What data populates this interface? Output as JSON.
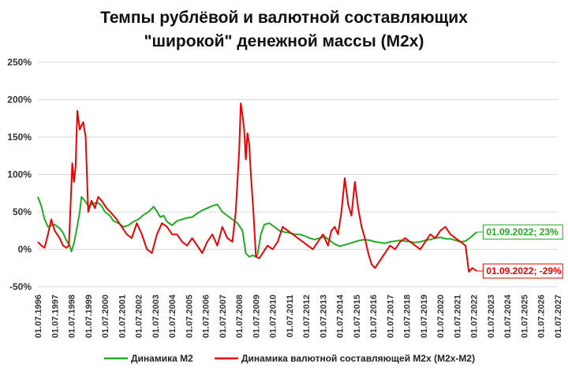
{
  "chart_data": {
    "type": "line",
    "title_lines": [
      "Темпы рублёвой и валютной составляющих",
      "\"широкой\" денежной массы (M2x)"
    ],
    "xlabel": "",
    "ylabel": "",
    "ylim": [
      -50,
      250
    ],
    "y_ticks": [
      -50,
      0,
      50,
      100,
      150,
      200,
      250
    ],
    "y_tick_labels": [
      "-50%",
      "0%",
      "50%",
      "100%",
      "150%",
      "200%",
      "250%"
    ],
    "x_range": [
      1996.5,
      2027.5
    ],
    "x_tick_labels": [
      "01.07.1996",
      "01.07.1997",
      "01.07.1998",
      "01.07.1999",
      "01.07.2000",
      "01.07.2001",
      "01.07.2002",
      "01.07.2003",
      "01.07.2004",
      "01.07.2005",
      "01.07.2006",
      "01.07.2007",
      "01.07.2008",
      "01.07.2009",
      "01.07.2010",
      "01.07.2011",
      "01.07.2012",
      "01.07.2013",
      "01.07.2014",
      "01.07.2015",
      "01.07.2016",
      "01.07.2017",
      "01.07.2018",
      "01.07.2019",
      "01.07.2020",
      "01.07.2021",
      "01.07.2022",
      "01.07.2023",
      "01.07.2024",
      "01.07.2025",
      "01.07.2026",
      "01.07.2027"
    ],
    "grid": true,
    "legend_position": "bottom",
    "series": [
      {
        "name": "Динамика М2",
        "color": "#22aa22",
        "x": [
          1996.5,
          1996.7,
          1996.9,
          1997.1,
          1997.3,
          1997.5,
          1997.8,
          1998.0,
          1998.2,
          1998.4,
          1998.5,
          1998.65,
          1998.8,
          1999.0,
          1999.1,
          1999.3,
          1999.5,
          1999.7,
          1999.9,
          2000.1,
          2000.3,
          2000.5,
          2000.8,
          2001.0,
          2001.3,
          2001.6,
          2001.9,
          2002.2,
          2002.5,
          2002.8,
          2003.1,
          2003.4,
          2003.6,
          2003.8,
          2004.0,
          2004.2,
          2004.5,
          2004.8,
          2005.1,
          2005.4,
          2005.7,
          2006.0,
          2006.3,
          2006.6,
          2006.9,
          2007.2,
          2007.5,
          2007.8,
          2008.1,
          2008.4,
          2008.7,
          2008.9,
          2009.1,
          2009.3,
          2009.5,
          2009.6,
          2009.8,
          2010.0,
          2010.3,
          2010.6,
          2010.9,
          2011.2,
          2011.5,
          2011.8,
          2012.1,
          2012.4,
          2012.7,
          2013.0,
          2013.3,
          2013.6,
          2013.9,
          2014.2,
          2014.5,
          2014.8,
          2015.1,
          2015.4,
          2015.7,
          2016.0,
          2016.3,
          2016.6,
          2016.9,
          2017.2,
          2017.5,
          2017.8,
          2018.1,
          2018.4,
          2018.7,
          2019.0,
          2019.3,
          2019.6,
          2019.9,
          2020.2,
          2020.5,
          2020.8,
          2021.1,
          2021.4,
          2021.7,
          2022.0,
          2022.3,
          2022.67
        ],
        "values": [
          70,
          58,
          40,
          30,
          32,
          33,
          28,
          22,
          12,
          5,
          -3,
          8,
          25,
          50,
          70,
          65,
          58,
          60,
          62,
          62,
          58,
          50,
          45,
          38,
          35,
          30,
          32,
          37,
          40,
          46,
          50,
          57,
          51,
          43,
          45,
          37,
          32,
          38,
          40,
          42,
          43,
          48,
          52,
          55,
          58,
          60,
          50,
          45,
          40,
          35,
          25,
          -5,
          -10,
          -8,
          -10,
          -7,
          20,
          33,
          35,
          30,
          25,
          23,
          22,
          20,
          20,
          18,
          15,
          13,
          15,
          17,
          12,
          7,
          4,
          6,
          8,
          10,
          12,
          13,
          12,
          10,
          9,
          8,
          10,
          11,
          12,
          11,
          10,
          9,
          10,
          12,
          13,
          15,
          16,
          14,
          14,
          12,
          10,
          11,
          16,
          23
        ]
      },
      {
        "name": "Динамика валютной составляющей M2x (M2x-M2)",
        "color": "#ee0000",
        "x": [
          1996.5,
          1996.7,
          1996.9,
          1997.1,
          1997.3,
          1997.5,
          1997.8,
          1998.0,
          1998.2,
          1998.35,
          1998.45,
          1998.55,
          1998.65,
          1998.75,
          1998.85,
          1999.0,
          1999.2,
          1999.35,
          1999.5,
          1999.7,
          1999.9,
          2000.1,
          2000.3,
          2000.6,
          2000.9,
          2001.2,
          2001.5,
          2001.8,
          2002.1,
          2002.4,
          2002.7,
          2003.0,
          2003.3,
          2003.6,
          2003.9,
          2004.2,
          2004.5,
          2004.8,
          2005.1,
          2005.4,
          2005.7,
          2006.0,
          2006.3,
          2006.6,
          2006.9,
          2007.2,
          2007.5,
          2007.8,
          2008.1,
          2008.3,
          2008.5,
          2008.6,
          2008.7,
          2008.8,
          2008.9,
          2009.0,
          2009.1,
          2009.2,
          2009.35,
          2009.5,
          2009.7,
          2009.9,
          2010.2,
          2010.5,
          2010.8,
          2011.1,
          2011.4,
          2011.7,
          2012.0,
          2012.3,
          2012.6,
          2012.9,
          2013.2,
          2013.5,
          2013.8,
          2014.0,
          2014.2,
          2014.4,
          2014.6,
          2014.8,
          2015.0,
          2015.2,
          2015.4,
          2015.6,
          2015.8,
          2016.0,
          2016.2,
          2016.4,
          2016.6,
          2016.9,
          2017.2,
          2017.5,
          2017.8,
          2018.1,
          2018.4,
          2018.7,
          2019.0,
          2019.3,
          2019.6,
          2019.9,
          2020.2,
          2020.5,
          2020.8,
          2021.1,
          2021.4,
          2021.7,
          2022.0,
          2022.2,
          2022.4,
          2022.67
        ],
        "values": [
          10,
          5,
          2,
          20,
          40,
          25,
          15,
          5,
          2,
          5,
          60,
          115,
          90,
          110,
          185,
          160,
          170,
          150,
          50,
          65,
          55,
          70,
          65,
          55,
          48,
          40,
          30,
          20,
          15,
          35,
          20,
          0,
          -5,
          20,
          35,
          30,
          20,
          20,
          10,
          5,
          15,
          5,
          -5,
          10,
          20,
          5,
          30,
          15,
          10,
          50,
          130,
          195,
          180,
          160,
          120,
          155,
          140,
          100,
          50,
          -10,
          -12,
          -5,
          5,
          0,
          10,
          30,
          25,
          20,
          15,
          10,
          5,
          0,
          10,
          20,
          5,
          25,
          30,
          20,
          50,
          95,
          60,
          45,
          90,
          55,
          30,
          15,
          -5,
          -20,
          -25,
          -15,
          -5,
          5,
          0,
          10,
          15,
          10,
          5,
          0,
          10,
          20,
          15,
          25,
          30,
          20,
          15,
          10,
          5,
          -30,
          -25,
          -29
        ]
      }
    ],
    "annotations": [
      {
        "text": "01.09.2022; 23%",
        "series": 0,
        "color": "#22aa22"
      },
      {
        "text": "01.09.2022; -29%",
        "series": 1,
        "color": "#ee0000"
      }
    ]
  }
}
